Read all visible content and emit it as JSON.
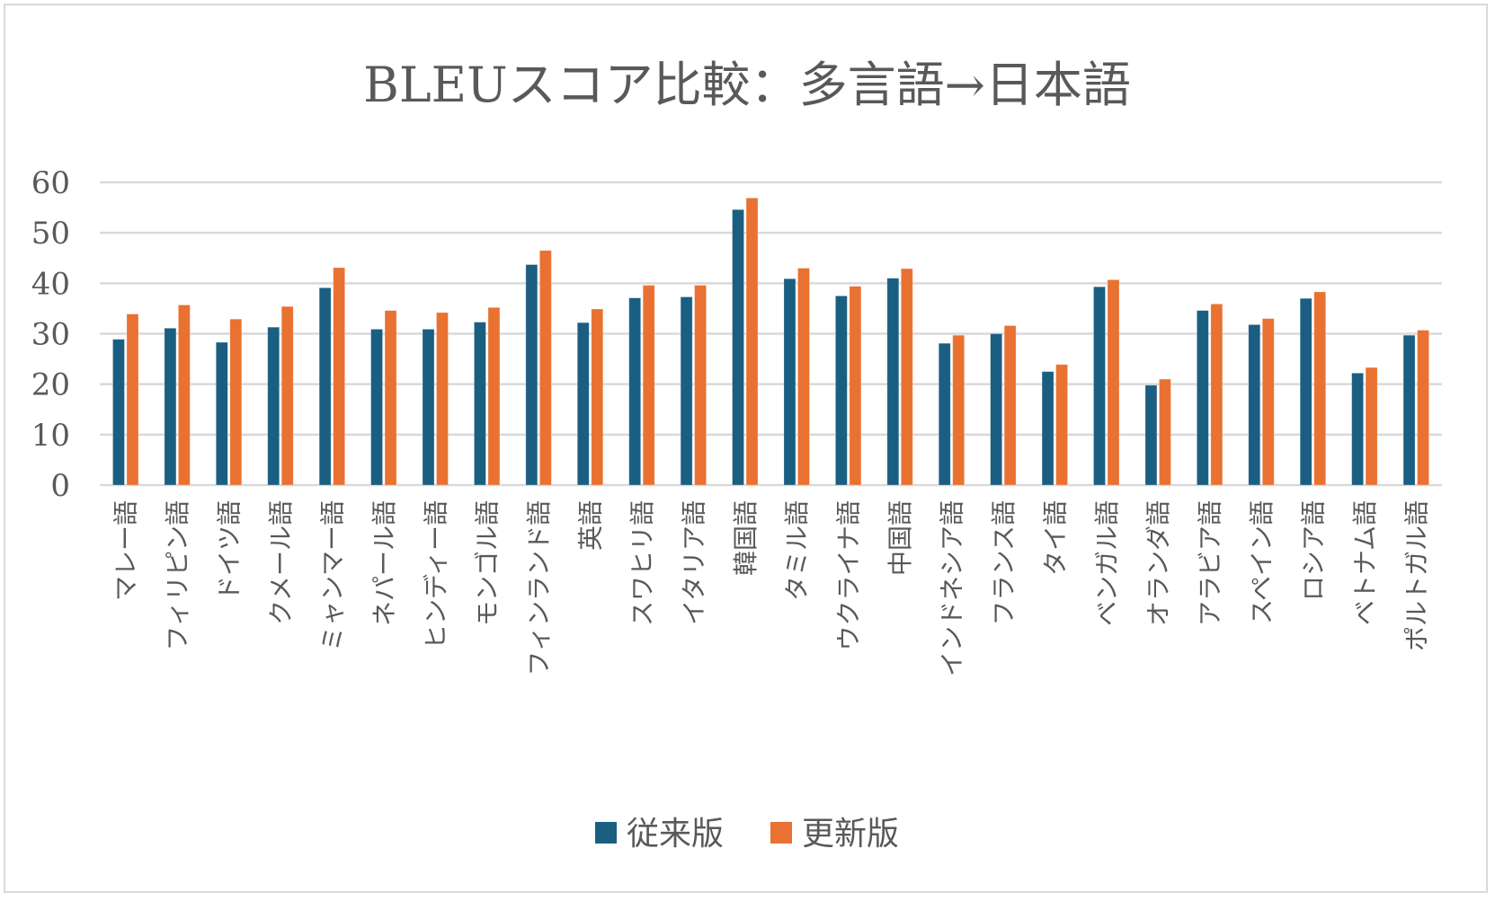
{
  "chart_data": {
    "type": "bar",
    "title": "BLEUスコア比較：多言語→日本語",
    "xlabel": "",
    "ylabel": "",
    "ylim": [
      0,
      60
    ],
    "yticks": [
      0,
      10,
      20,
      30,
      40,
      50,
      60
    ],
    "ytick_labels": [
      "0",
      "10",
      "20",
      "30",
      "40",
      "50",
      "60"
    ],
    "grid": true,
    "legend_position": "bottom",
    "categories": [
      "マレー語",
      "フィリピン語",
      "ドイツ語",
      "クメール語",
      "ミャンマー語",
      "ネパール語",
      "ヒンディー語",
      "モンゴル語",
      "フィンランド語",
      "英語",
      "スワヒリ語",
      "イタリア語",
      "韓国語",
      "タミル語",
      "ウクライナ語",
      "中国語",
      "インドネシア語",
      "フランス語",
      "タイ語",
      "ベンガル語",
      "オランダ語",
      "アラビア語",
      "スペイン語",
      "ロシア語",
      "ベトナム語",
      "ポルトガル語"
    ],
    "series": [
      {
        "name": "従来版",
        "color": "#1a5e82",
        "values": [
          28.9,
          31.1,
          28.3,
          31.3,
          39.1,
          30.9,
          30.9,
          32.3,
          43.7,
          32.2,
          37.1,
          37.3,
          54.6,
          40.9,
          37.5,
          41.0,
          28.1,
          30.0,
          22.5,
          39.3,
          19.8,
          34.6,
          31.8,
          37.0,
          22.2,
          29.7
        ]
      },
      {
        "name": "更新版",
        "color": "#e97132",
        "values": [
          33.9,
          35.7,
          32.9,
          35.4,
          43.1,
          34.6,
          34.2,
          35.2,
          46.5,
          34.9,
          39.6,
          39.6,
          56.9,
          43.0,
          39.4,
          42.9,
          29.7,
          31.6,
          23.9,
          40.7,
          21.0,
          35.9,
          33.0,
          38.3,
          23.3,
          30.7
        ]
      }
    ]
  },
  "colors": {
    "gridline": "#d9d9d9",
    "text": "#595959",
    "border": "#d9d9d9"
  }
}
